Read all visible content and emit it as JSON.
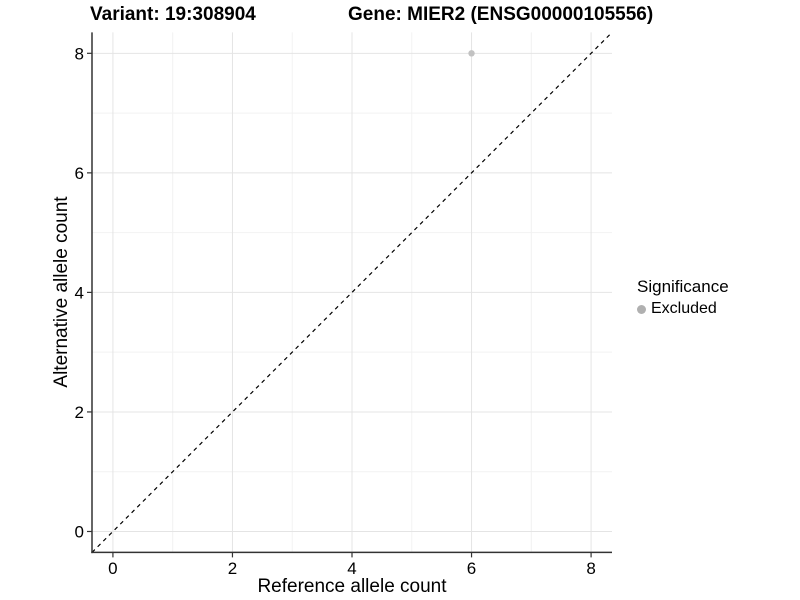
{
  "header": {
    "variant_title": "Variant: 19:308904",
    "gene_title": "Gene: MIER2 (ENSG00000105556)"
  },
  "chart_data": {
    "type": "scatter",
    "title_left": "Variant: 19:308904",
    "title_right": "Gene: MIER2 (ENSG00000105556)",
    "xlabel": "Reference allele count",
    "ylabel": "Alternative allele count",
    "xlim": [
      -0.35,
      8.35
    ],
    "ylim": [
      -0.35,
      8.35
    ],
    "xticks": [
      0,
      2,
      4,
      6,
      8
    ],
    "yticks": [
      0,
      2,
      4,
      6,
      8
    ],
    "x_minor_ticks": [
      1,
      3,
      5,
      7
    ],
    "y_minor_ticks": [
      1,
      3,
      5,
      7
    ],
    "grid": true,
    "series": [
      {
        "name": "Excluded",
        "points": [
          {
            "x": 6,
            "y": 8
          }
        ],
        "color": "#c2c2c2"
      }
    ],
    "reference_line": {
      "type": "identity-diagonal",
      "style": "dashed",
      "color": "#000000"
    },
    "legend": {
      "title": "Significance",
      "position": "right",
      "entries": [
        {
          "label": "Excluded",
          "color": "#b0b0b0"
        }
      ]
    },
    "colors": {
      "grid_major": "#e4e4e4",
      "grid_minor": "#f2f2f2",
      "axis": "#333333",
      "background": "#ffffff"
    }
  }
}
